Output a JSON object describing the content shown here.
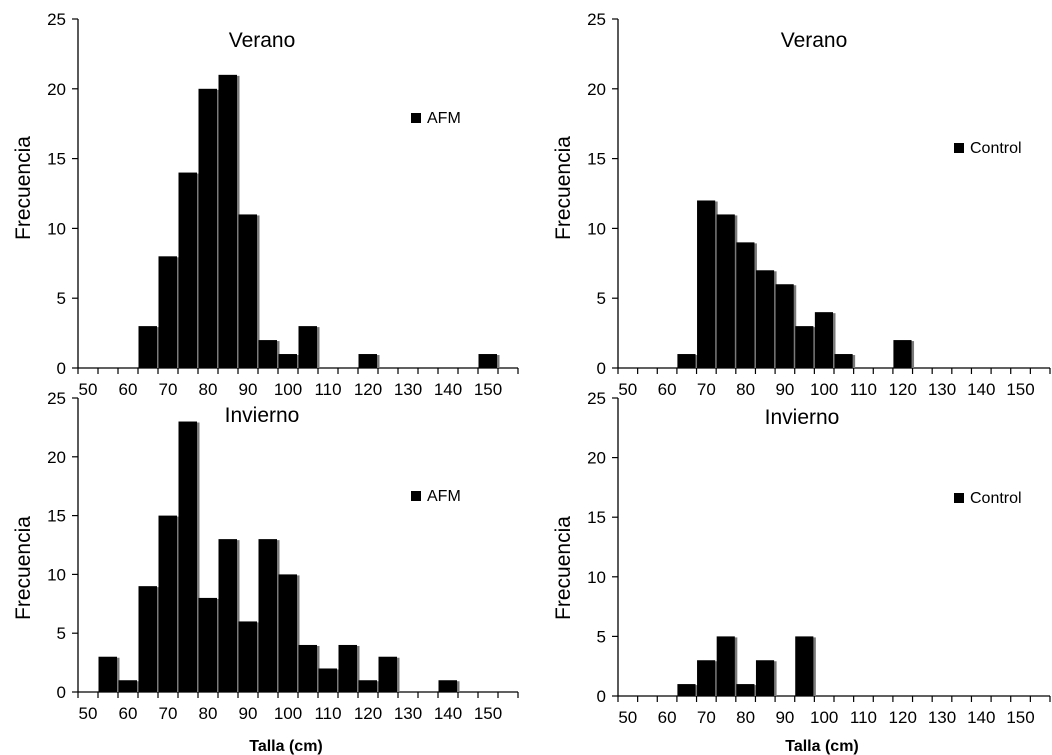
{
  "chart_data": [
    {
      "type": "bar",
      "title": "Verano",
      "ylabel": "Frecuencia",
      "xlabel": "",
      "series": [
        {
          "name": "AFM",
          "values": [
            0,
            0,
            0,
            3,
            8,
            14,
            20,
            21,
            11,
            2,
            1,
            3,
            0,
            0,
            1,
            0,
            0,
            0,
            0,
            0,
            1,
            0
          ]
        }
      ],
      "bin_starts": [
        50,
        55,
        60,
        65,
        70,
        75,
        80,
        85,
        90,
        95,
        100,
        105,
        110,
        115,
        120,
        125,
        130,
        135,
        140,
        145,
        150,
        155
      ],
      "xticks": [
        "50",
        "60",
        "70",
        "80",
        "90",
        "100",
        "110",
        "120",
        "130",
        "140",
        "150"
      ],
      "yticks": [
        "0",
        "5",
        "10",
        "15",
        "20",
        "25"
      ],
      "ylim": [
        0,
        25
      ],
      "xlim": [
        50,
        160
      ],
      "legend": "right"
    },
    {
      "type": "bar",
      "title": "Verano",
      "ylabel": "Frecuencia",
      "xlabel": "",
      "series": [
        {
          "name": "Control",
          "values": [
            0,
            0,
            0,
            1,
            12,
            11,
            9,
            7,
            6,
            3,
            4,
            1,
            0,
            0,
            2,
            0,
            0,
            0,
            0,
            0,
            0,
            0
          ]
        }
      ],
      "bin_starts": [
        50,
        55,
        60,
        65,
        70,
        75,
        80,
        85,
        90,
        95,
        100,
        105,
        110,
        115,
        120,
        125,
        130,
        135,
        140,
        145,
        150,
        155
      ],
      "xticks": [
        "50",
        "60",
        "70",
        "80",
        "90",
        "100",
        "110",
        "120",
        "130",
        "140",
        "150"
      ],
      "yticks": [
        "0",
        "5",
        "10",
        "15",
        "20",
        "25"
      ],
      "ylim": [
        0,
        25
      ],
      "xlim": [
        50,
        160
      ],
      "legend": "right"
    },
    {
      "type": "bar",
      "title": "Invierno",
      "ylabel": "Frecuencia",
      "xlabel": "Talla (cm)",
      "series": [
        {
          "name": "AFM",
          "values": [
            3,
            1,
            9,
            15,
            23,
            8,
            13,
            6,
            13,
            10,
            4,
            2,
            4,
            1,
            3,
            0,
            0,
            1,
            0,
            0,
            0,
            0
          ]
        }
      ],
      "bin_starts": [
        55,
        60,
        65,
        70,
        75,
        80,
        85,
        90,
        95,
        100,
        105,
        110,
        115,
        120,
        125,
        130,
        135,
        140,
        145,
        150,
        155,
        160
      ],
      "xticks": [
        "50",
        "60",
        "70",
        "80",
        "90",
        "100",
        "110",
        "120",
        "130",
        "140",
        "150"
      ],
      "yticks": [
        "0",
        "5",
        "10",
        "15",
        "20",
        "25"
      ],
      "ylim": [
        0,
        25
      ],
      "xlim": [
        50,
        160
      ],
      "legend": "right"
    },
    {
      "type": "bar",
      "title": "Invierno",
      "ylabel": "Frecuencia",
      "xlabel": "Talla (cm)",
      "series": [
        {
          "name": "Control",
          "values": [
            0,
            0,
            0,
            1,
            3,
            5,
            1,
            3,
            0,
            5,
            0,
            0,
            0,
            0,
            0,
            0,
            0,
            0,
            0,
            0,
            0,
            0
          ]
        }
      ],
      "bin_starts": [
        50,
        55,
        60,
        65,
        70,
        75,
        80,
        85,
        90,
        95,
        100,
        105,
        110,
        115,
        120,
        125,
        130,
        135,
        140,
        145,
        150,
        155
      ],
      "xticks": [
        "50",
        "60",
        "70",
        "80",
        "90",
        "100",
        "110",
        "120",
        "130",
        "140",
        "150"
      ],
      "yticks": [
        "0",
        "5",
        "10",
        "15",
        "20",
        "25"
      ],
      "ylim": [
        0,
        25
      ],
      "xlim": [
        50,
        160
      ],
      "legend": "right"
    }
  ]
}
